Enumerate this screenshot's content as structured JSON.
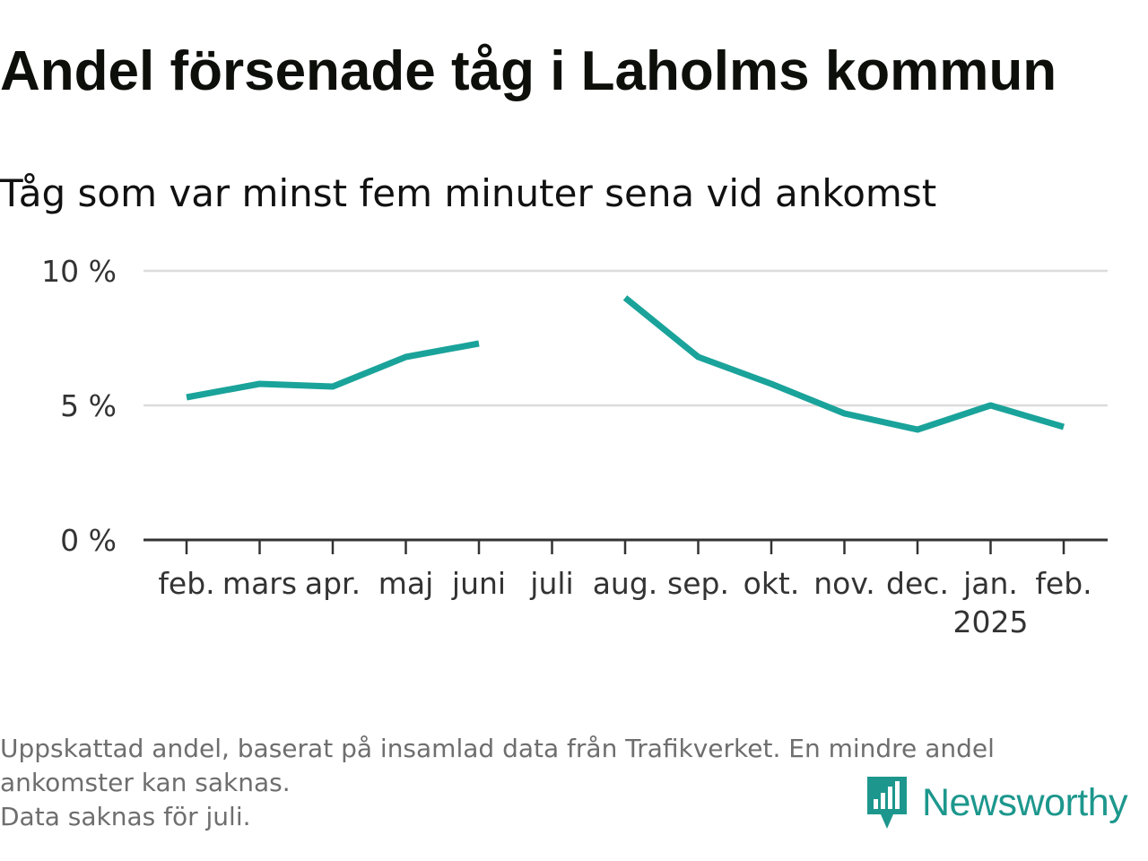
{
  "header": {
    "title": "Andel försenade tåg i Laholms kommun",
    "subtitle": "Tåg som var minst fem minuter sena vid ankomst"
  },
  "chart_data": {
    "type": "line",
    "title": "Andel försenade tåg i Laholms kommun",
    "subtitle": "Tåg som var minst fem minuter sena vid ankomst",
    "categories": [
      "feb.",
      "mars",
      "apr.",
      "maj",
      "juni",
      "juli",
      "aug.",
      "sep.",
      "okt.",
      "nov.",
      "dec.",
      "jan.",
      "feb."
    ],
    "year_labels": [
      "",
      "",
      "",
      "",
      "",
      "",
      "",
      "",
      "",
      "",
      "",
      "2025",
      ""
    ],
    "series": [
      {
        "values": [
          5.3,
          5.8,
          5.7,
          6.8,
          7.3,
          null,
          9.0,
          6.8,
          5.8,
          4.7,
          4.1,
          5.0,
          4.2
        ]
      }
    ],
    "y_ticks": [
      0,
      5,
      10
    ],
    "y_tick_labels": [
      "0 %",
      "5 %",
      "10 %"
    ],
    "ylim": [
      0,
      10
    ],
    "grid": true,
    "line_color": "#1aa39a"
  },
  "footnote": {
    "line1": "Uppskattad andel, baserat på insamlad data från Trafikverket. En mindre andel",
    "line2": "ankomster kan saknas.",
    "line3": "Data saknas för juli."
  },
  "logo": {
    "text": "Newsworthy",
    "icon": "newsworthy-logo-icon",
    "color": "#1d978d"
  }
}
